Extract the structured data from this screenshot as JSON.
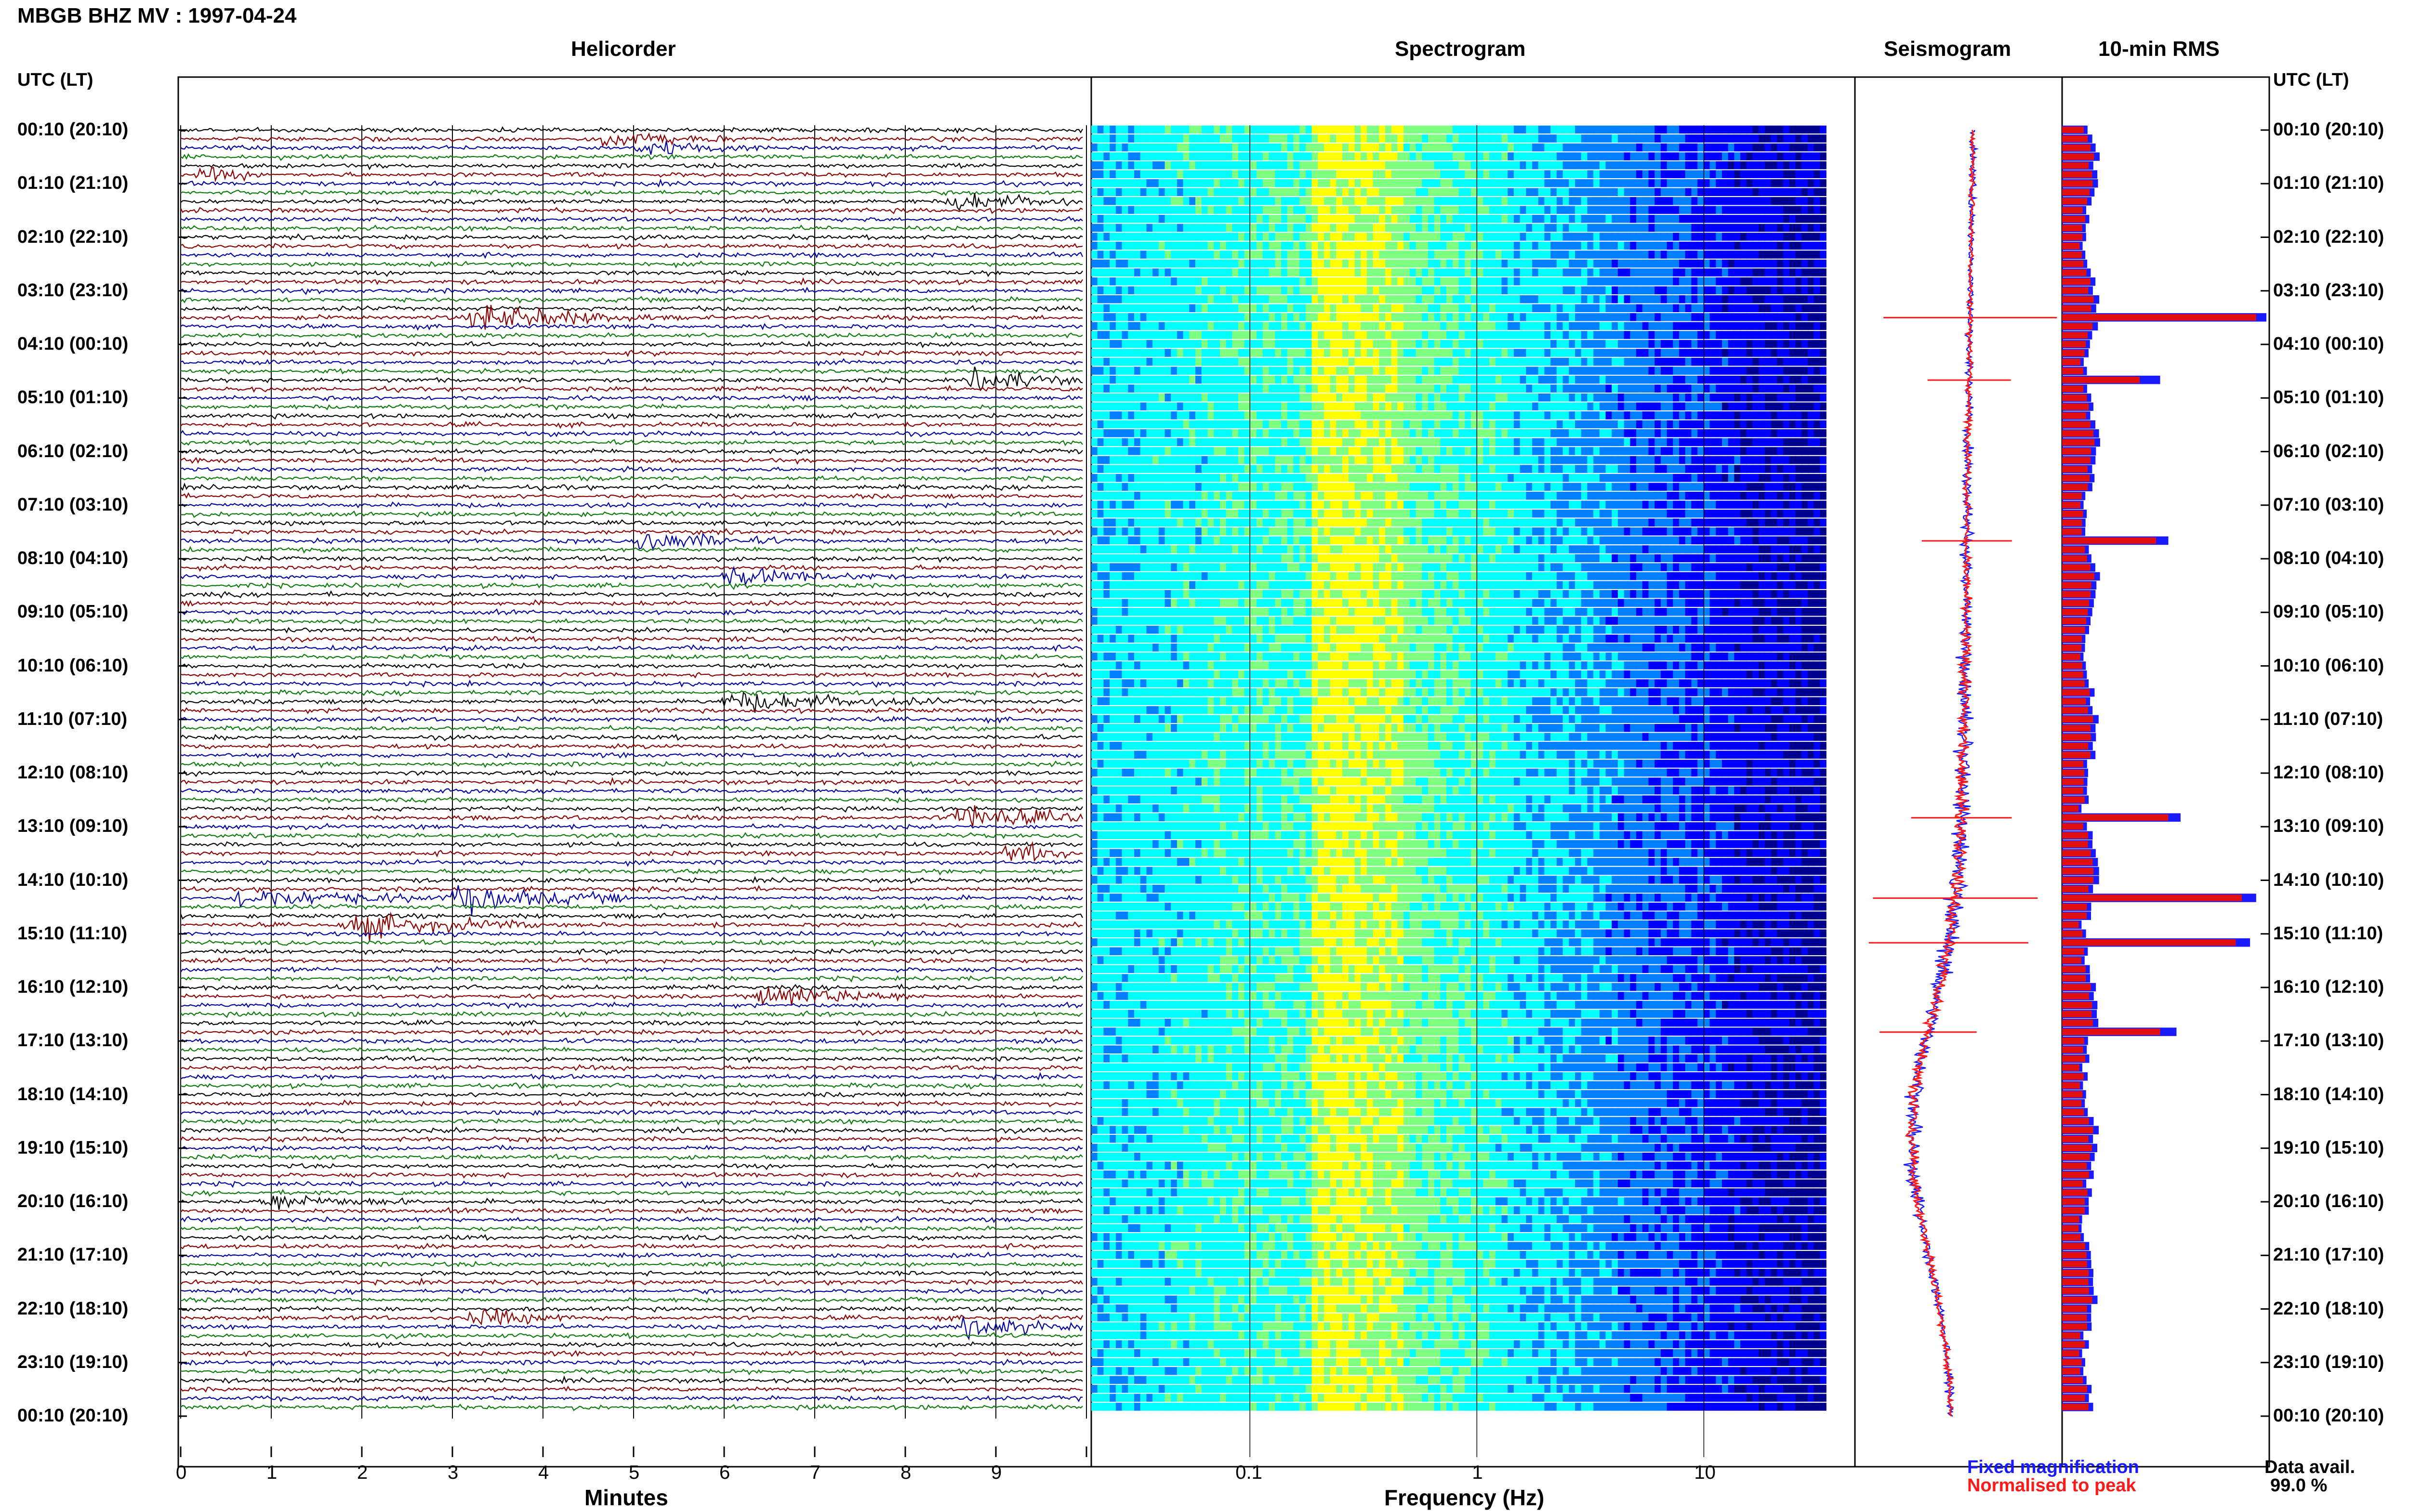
{
  "header": {
    "station_title": "MBGB BHZ MV : 1997-04-24",
    "left_axis_title": "UTC (LT)",
    "right_axis_title": "UTC (LT)"
  },
  "panels": {
    "helicorder_title": "Helicorder",
    "spectrogram_title": "Spectrogram",
    "seismogram_title": "Seismogram",
    "rms_title": "10-min RMS"
  },
  "axes": {
    "minutes_label": "Minutes",
    "frequency_label": "Frequency (Hz)",
    "minute_ticks": [
      "0",
      "1",
      "2",
      "3",
      "4",
      "5",
      "6",
      "7",
      "8",
      "9"
    ],
    "frequency_ticks": [
      "0.1",
      "1",
      "10"
    ]
  },
  "time_labels": [
    "00:10 (20:10)",
    "01:10 (21:10)",
    "02:10 (22:10)",
    "03:10 (23:10)",
    "04:10 (00:10)",
    "05:10 (01:10)",
    "06:10 (02:10)",
    "07:10 (03:10)",
    "08:10 (04:10)",
    "09:10 (05:10)",
    "10:10 (06:10)",
    "11:10 (07:10)",
    "12:10 (08:10)",
    "13:10 (09:10)",
    "14:10 (10:10)",
    "15:10 (11:10)",
    "16:10 (12:10)",
    "17:10 (13:10)",
    "18:10 (14:10)",
    "19:10 (15:10)",
    "20:10 (16:10)",
    "21:10 (17:10)",
    "22:10 (18:10)",
    "23:10 (19:10)",
    "00:10 (20:10)"
  ],
  "legend": {
    "fixed_label": "Fixed magnification",
    "fixed_color": "#1a1aff",
    "normalised_label": "Normalised to peak",
    "normalised_color": "#ff1a1a"
  },
  "availability": {
    "label": "Data avail.",
    "value": "99.0 %"
  },
  "colors": {
    "trace_cycle": [
      "#000000",
      "#8b0000",
      "#0000a0",
      "#0a7a0a"
    ],
    "rms_fixed": "#1a1aff",
    "rms_normalised": "#e01010"
  },
  "chart_data": {
    "type": "heatmap",
    "helicorder": {
      "x_unit": "minutes",
      "xlim": [
        0,
        10
      ],
      "rows": 144,
      "row_minutes": 10,
      "events": [
        {
          "row": 2,
          "minute": 5.0,
          "amp": 1.4,
          "dur": 1.6
        },
        {
          "row": 1,
          "minute": 4.6,
          "amp": 1.4,
          "dur": 1.6
        },
        {
          "row": 5,
          "minute": 0.2,
          "amp": 1.2,
          "dur": 0.8
        },
        {
          "row": 8,
          "minute": 8.5,
          "amp": 1.8,
          "dur": 1.6
        },
        {
          "row": 21,
          "minute": 3.2,
          "amp": 2.8,
          "dur": 2.0
        },
        {
          "row": 28,
          "minute": 8.7,
          "amp": 2.4,
          "dur": 1.4
        },
        {
          "row": 46,
          "minute": 5.0,
          "amp": 2.2,
          "dur": 1.6
        },
        {
          "row": 50,
          "minute": 6.0,
          "amp": 1.6,
          "dur": 1.8
        },
        {
          "row": 64,
          "minute": 6.0,
          "amp": 2.0,
          "dur": 2.4
        },
        {
          "row": 77,
          "minute": 8.5,
          "amp": 2.6,
          "dur": 1.8
        },
        {
          "row": 81,
          "minute": 9.1,
          "amp": 2.0,
          "dur": 1.0
        },
        {
          "row": 86,
          "minute": 0.6,
          "amp": 2.0,
          "dur": 2.6
        },
        {
          "row": 86,
          "minute": 3.0,
          "amp": 2.6,
          "dur": 2.0
        },
        {
          "row": 89,
          "minute": 1.8,
          "amp": 2.4,
          "dur": 2.2
        },
        {
          "row": 97,
          "minute": 6.4,
          "amp": 2.4,
          "dur": 1.8
        },
        {
          "row": 120,
          "minute": 0.9,
          "amp": 1.6,
          "dur": 1.6
        },
        {
          "row": 133,
          "minute": 3.2,
          "amp": 1.8,
          "dur": 1.2
        },
        {
          "row": 134,
          "minute": 8.6,
          "amp": 2.0,
          "dur": 1.4
        }
      ]
    },
    "spectrogram": {
      "x_unit": "Hz",
      "x_scale": "log",
      "xlim": [
        0.02,
        40
      ],
      "colormap": [
        "#ffff00",
        "#7fff7f",
        "#00ffff",
        "#007fff",
        "#0000ff",
        "#00008f"
      ]
    },
    "rms": {
      "rows": 144,
      "unit": "relative",
      "peaks": [
        {
          "row": 21,
          "fixed": 1.0,
          "normalised": 0.95
        },
        {
          "row": 28,
          "fixed": 0.48,
          "normalised": 0.38
        },
        {
          "row": 46,
          "fixed": 0.52,
          "normalised": 0.46
        },
        {
          "row": 77,
          "fixed": 0.58,
          "normalised": 0.52
        },
        {
          "row": 86,
          "fixed": 0.95,
          "normalised": 0.88
        },
        {
          "row": 91,
          "fixed": 0.92,
          "normalised": 0.85
        },
        {
          "row": 101,
          "fixed": 0.56,
          "normalised": 0.48
        }
      ]
    }
  }
}
